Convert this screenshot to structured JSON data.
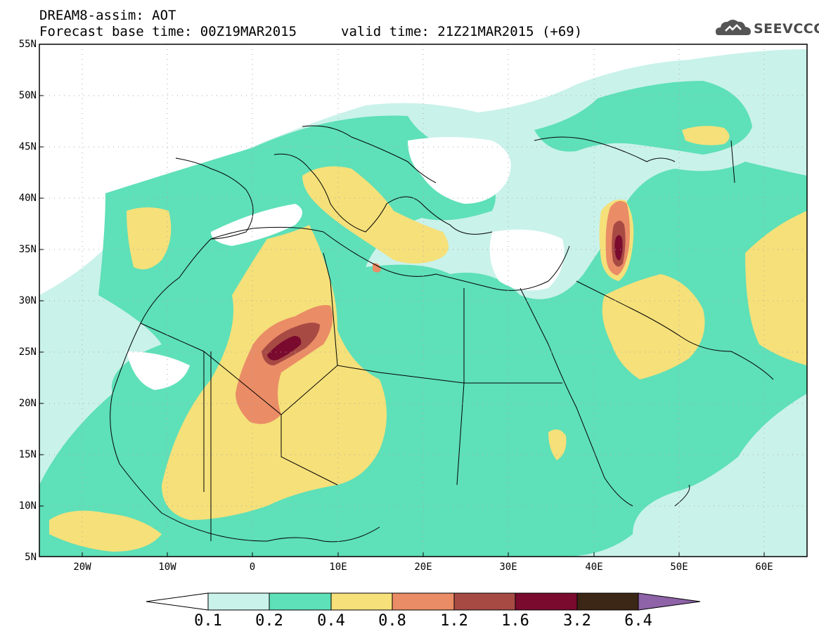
{
  "header": {
    "title_line1": "DREAM8-assim: AOT",
    "title_line2": "Forecast base time: 00Z19MAR2015",
    "valid_time": "valid time: 21Z21MAR2015 (+69)",
    "logo_text": "SEEVCCC"
  },
  "map": {
    "lat_labels": [
      "55N",
      "50N",
      "45N",
      "40N",
      "35N",
      "30N",
      "25N",
      "20N",
      "15N",
      "10N",
      "5N"
    ],
    "lon_labels": [
      "20W",
      "10W",
      "0",
      "10E",
      "20E",
      "30E",
      "40E",
      "50E",
      "60E"
    ],
    "lat_range": [
      5,
      55
    ],
    "lon_range": [
      -25,
      65
    ],
    "grid": true
  },
  "colorbar": {
    "labels": [
      "0.1",
      "0.2",
      "0.4",
      "0.8",
      "1.2",
      "1.6",
      "3.2",
      "6.4"
    ],
    "colors": [
      "#c9f2ea",
      "#5ee0b8",
      "#f5e07a",
      "#ea8c66",
      "#a84a44",
      "#7a0a2e",
      "#3c2615",
      "#8e63a8"
    ]
  }
}
